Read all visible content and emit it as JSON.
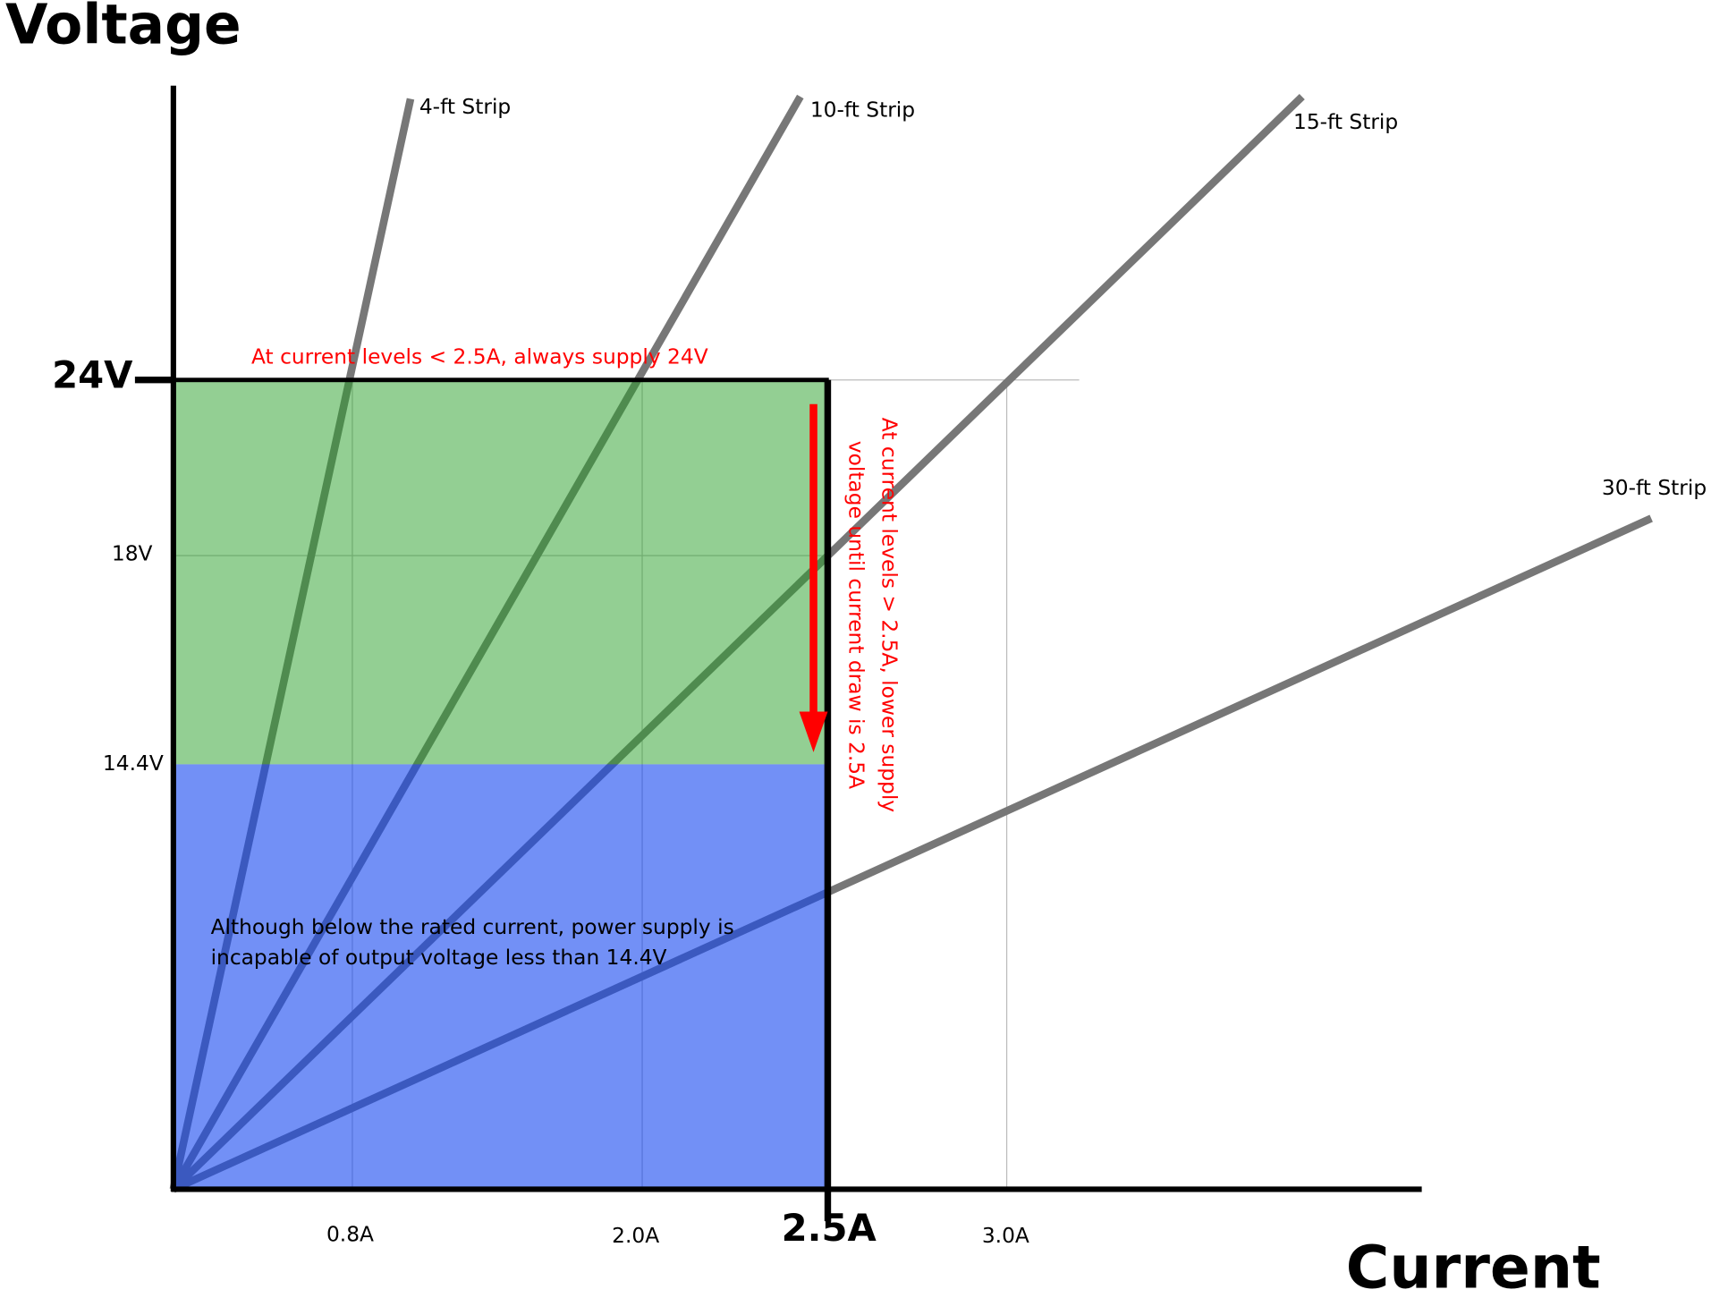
{
  "title": {
    "y_axis": "Voltage",
    "x_axis": "Current"
  },
  "y_ticks": [
    "24V",
    "18V",
    "14.4V"
  ],
  "x_ticks": [
    "0.8A",
    "2.0A",
    "2.5A",
    "3.0A"
  ],
  "strips": [
    "4-ft Strip",
    "10-ft Strip",
    "15-ft Strip",
    "30-ft Strip"
  ],
  "annotations": {
    "top": "At current levels < 2.5A, always supply 24V",
    "side": [
      "At current levels > 2.5A, lower supply",
      "voltage until current draw is 2.5A"
    ],
    "bottom": [
      "Although below the rated current, power supply is",
      "incapable of output voltage less than 14.4V"
    ]
  }
}
